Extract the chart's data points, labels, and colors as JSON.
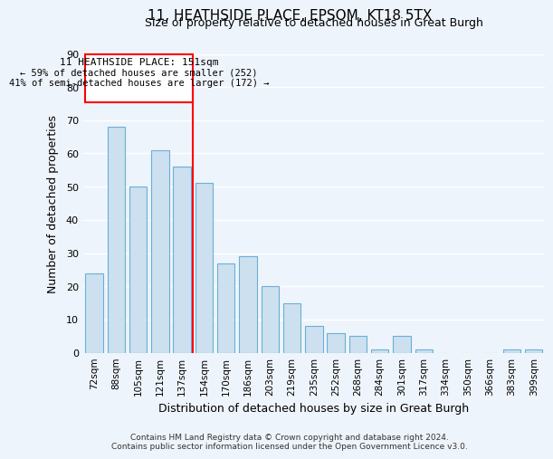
{
  "title": "11, HEATHSIDE PLACE, EPSOM, KT18 5TX",
  "subtitle": "Size of property relative to detached houses in Great Burgh",
  "xlabel": "Distribution of detached houses by size in Great Burgh",
  "ylabel": "Number of detached properties",
  "bar_color": "#cce0f0",
  "bar_edge_color": "#6aafd6",
  "background_color": "#eef4fb",
  "grid_color": "white",
  "categories": [
    "72sqm",
    "88sqm",
    "105sqm",
    "121sqm",
    "137sqm",
    "154sqm",
    "170sqm",
    "186sqm",
    "203sqm",
    "219sqm",
    "235sqm",
    "252sqm",
    "268sqm",
    "284sqm",
    "301sqm",
    "317sqm",
    "334sqm",
    "350sqm",
    "366sqm",
    "383sqm",
    "399sqm"
  ],
  "values": [
    24,
    68,
    50,
    61,
    56,
    51,
    27,
    29,
    20,
    15,
    8,
    6,
    5,
    1,
    5,
    1,
    0,
    0,
    0,
    1,
    1
  ],
  "ylim": [
    0,
    90
  ],
  "yticks": [
    0,
    10,
    20,
    30,
    40,
    50,
    60,
    70,
    80,
    90
  ],
  "vline_color": "red",
  "annotation_title": "11 HEATHSIDE PLACE: 151sqm",
  "annotation_line1": "← 59% of detached houses are smaller (252)",
  "annotation_line2": "41% of semi-detached houses are larger (172) →",
  "footer1": "Contains HM Land Registry data © Crown copyright and database right 2024.",
  "footer2": "Contains public sector information licensed under the Open Government Licence v3.0."
}
